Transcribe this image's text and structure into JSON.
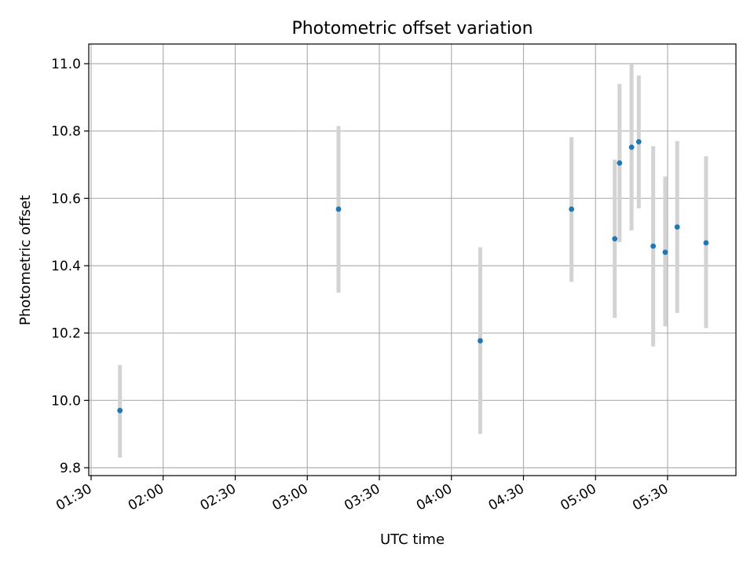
{
  "chart_data": {
    "type": "scatter",
    "title": "Photometric offset variation",
    "xlabel": "UTC time",
    "ylabel": "Photometric offset",
    "x_ticks": [
      "01:30",
      "02:00",
      "02:30",
      "03:00",
      "03:30",
      "04:00",
      "04:30",
      "05:00",
      "05:30"
    ],
    "y_ticks": [
      "9.8",
      "10.0",
      "10.2",
      "10.4",
      "10.6",
      "10.8",
      "11.0"
    ],
    "grid": true,
    "colors": {
      "points": "#1f77b4",
      "errorbars": "#d3d3d3",
      "grid": "#b0b0b0"
    },
    "points": [
      {
        "x": "01:42",
        "y": 9.97,
        "err_low": 9.83,
        "err_high": 10.105
      },
      {
        "x": "03:13",
        "y": 10.568,
        "err_low": 10.32,
        "err_high": 10.815
      },
      {
        "x": "04:12",
        "y": 10.177,
        "err_low": 9.9,
        "err_high": 10.455
      },
      {
        "x": "04:50",
        "y": 10.568,
        "err_low": 10.352,
        "err_high": 10.782
      },
      {
        "x": "05:08",
        "y": 10.48,
        "err_low": 10.245,
        "err_high": 10.715
      },
      {
        "x": "05:10",
        "y": 10.705,
        "err_low": 10.47,
        "err_high": 10.94
      },
      {
        "x": "05:15",
        "y": 10.752,
        "err_low": 10.505,
        "err_high": 11.0
      },
      {
        "x": "05:18",
        "y": 10.768,
        "err_low": 10.57,
        "err_high": 10.965
      },
      {
        "x": "05:24",
        "y": 10.458,
        "err_low": 10.16,
        "err_high": 10.755
      },
      {
        "x": "05:29",
        "y": 10.44,
        "err_low": 10.22,
        "err_high": 10.665
      },
      {
        "x": "05:34",
        "y": 10.515,
        "err_low": 10.26,
        "err_high": 10.77
      },
      {
        "x": "05:46",
        "y": 10.468,
        "err_low": 10.215,
        "err_high": 10.725
      }
    ]
  }
}
